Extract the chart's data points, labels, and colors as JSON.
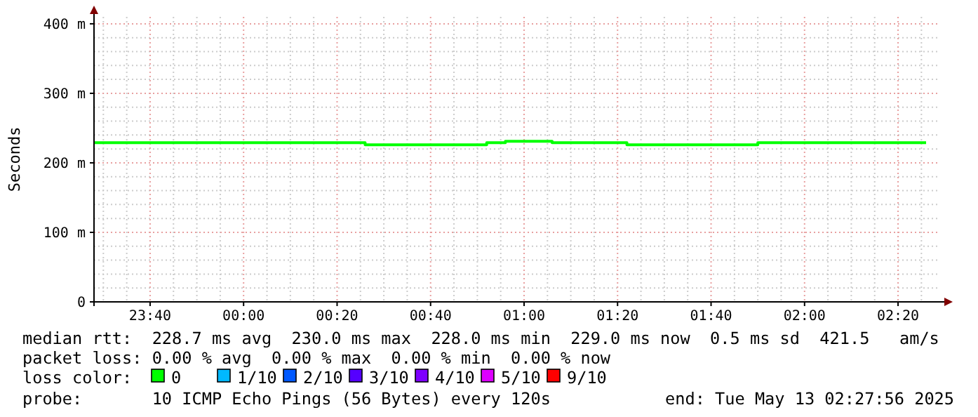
{
  "chart_data": {
    "type": "step",
    "ylabel": "Seconds",
    "x": [
      "2025-05-12T23:28",
      "2025-05-13T00:26",
      "2025-05-13T00:52",
      "2025-05-13T00:56",
      "2025-05-13T01:06",
      "2025-05-13T01:22",
      "2025-05-13T01:50",
      "2025-05-13T02:26"
    ],
    "series": [
      {
        "color": "#00ff00",
        "values": [
          229,
          226,
          229,
          231,
          229,
          226,
          229,
          229
        ]
      }
    ],
    "xlim": [
      "2025-05-12T23:28",
      "2025-05-13T02:29"
    ],
    "xticks": [
      {
        "value": "2025-05-12T23:40",
        "label": "23:40"
      },
      {
        "value": "2025-05-13T00:00",
        "label": "00:00"
      },
      {
        "value": "2025-05-13T00:20",
        "label": "00:20"
      },
      {
        "value": "2025-05-13T00:40",
        "label": "00:40"
      },
      {
        "value": "2025-05-13T01:00",
        "label": "01:00"
      },
      {
        "value": "2025-05-13T01:20",
        "label": "01:20"
      },
      {
        "value": "2025-05-13T01:40",
        "label": "01:40"
      },
      {
        "value": "2025-05-13T02:00",
        "label": "02:00"
      },
      {
        "value": "2025-05-13T02:20",
        "label": "02:20"
      }
    ],
    "ylim": [
      0,
      410
    ],
    "yticks": [
      0,
      {
        "value": 100,
        "label": "100 m"
      },
      {
        "value": 200,
        "label": "200 m"
      },
      {
        "value": 300,
        "label": "300 m"
      },
      {
        "value": 400,
        "label": "400 m"
      }
    ],
    "grid": true,
    "annotations": [
      "median rtt:  228.7 ms avg  230.0 ms max  228.0 ms min  229.0 ms now  0.5 ms sd  421.5   am/s",
      "packet loss: 0.00 % avg  0.00 % max  0.00 % min  0.00 % now",
      "loss color:",
      "0",
      "1/10",
      "2/10",
      "3/10",
      "4/10",
      "5/10",
      "9/10",
      "probe:       10 ICMP Echo Pings (56 Bytes) every 120s",
      "end: Tue May 13 02:27:56 2025"
    ]
  }
}
